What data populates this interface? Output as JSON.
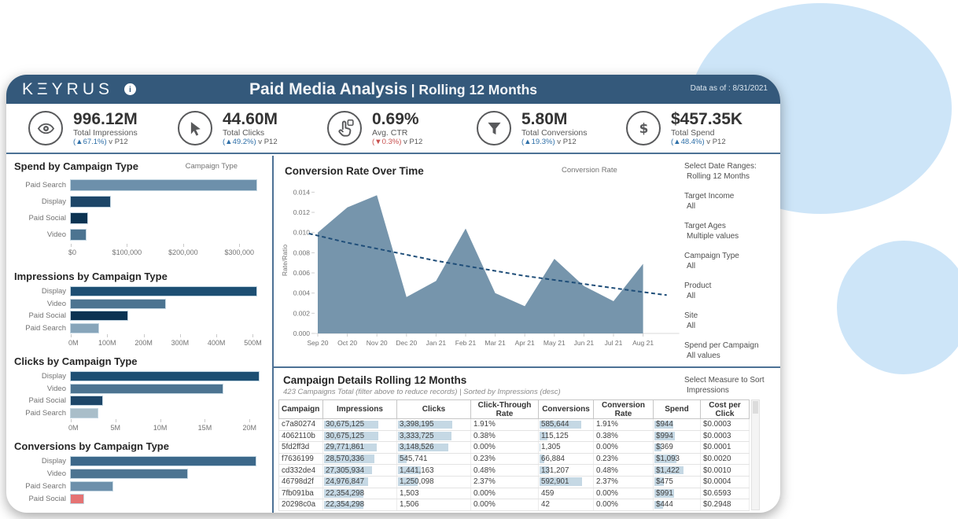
{
  "header": {
    "logo": "KΞYRUS",
    "info_icon": "i",
    "title_main": "Paid Media Analysis",
    "title_sep": "| ",
    "title_sub": "Rolling 12 Months",
    "data_as_of": "Data as of : 8/31/2021"
  },
  "colors": {
    "header_bg": "#34597B",
    "divider": "#4C7195",
    "accent_up": "#2D6FA8",
    "accent_down": "#C8504E",
    "icon": "#58595B",
    "table_bar": "#C5D8E4",
    "area_fill": "#7695AC",
    "trend": "#1F4E79",
    "bg_circle": "#CDE5F8"
  },
  "kpis": [
    {
      "icon": "eye-icon",
      "value": "996.12M",
      "label": "Total Impressions",
      "delta": "(▲67.1%)",
      "suffix": " v P12",
      "dir": "up"
    },
    {
      "icon": "cursor-icon",
      "value": "44.60M",
      "label": "Total Clicks",
      "delta": "(▲49.2%)",
      "suffix": " v P12",
      "dir": "up"
    },
    {
      "icon": "tap-icon",
      "value": "0.69%",
      "label": "Avg. CTR",
      "delta": "(▼0.3%)",
      "suffix": " v P12",
      "dir": "down"
    },
    {
      "icon": "funnel-icon",
      "value": "5.80M",
      "label": "Total Conversions",
      "delta": "(▲19.3%)",
      "suffix": " v P12",
      "dir": "up"
    },
    {
      "icon": "dollar-icon",
      "value": "$457.35K",
      "label": "Total Spend",
      "delta": "(▲48.4%)",
      "suffix": " v P12",
      "dir": "up"
    }
  ],
  "chart_data": [
    {
      "type": "bar",
      "orientation": "horizontal",
      "title": "Spend by Campaign Type",
      "field_label": "Campaign Type",
      "categories": [
        "Paid Search",
        "Display",
        "Paid Social",
        "Video"
      ],
      "values": [
        330000,
        70000,
        30000,
        27000
      ],
      "bar_colors": [
        "#6D90AB",
        "#1D4668",
        "#0B3352",
        "#4C7491"
      ],
      "axis_max": 350000,
      "ticks": [
        {
          "label": "$0",
          "value": 0
        },
        {
          "label": "$100,000",
          "value": 100000
        },
        {
          "label": "$200,000",
          "value": 200000
        },
        {
          "label": "$300,000",
          "value": 300000
        }
      ]
    },
    {
      "type": "bar",
      "orientation": "horizontal",
      "title": "Impressions by Campaign Type",
      "field_label": "",
      "categories": [
        "Display",
        "Video",
        "Paid Social",
        "Paid Search"
      ],
      "values": [
        510000000,
        260000000,
        155000000,
        75000000
      ],
      "bar_colors": [
        "#1D4F73",
        "#4C7491",
        "#0B3352",
        "#87A5BA"
      ],
      "axis_max": 540000000,
      "ticks": [
        {
          "label": "0M",
          "value": 0
        },
        {
          "label": "100M",
          "value": 100000000
        },
        {
          "label": "200M",
          "value": 200000000
        },
        {
          "label": "300M",
          "value": 300000000
        },
        {
          "label": "400M",
          "value": 400000000
        },
        {
          "label": "500M",
          "value": 500000000
        }
      ]
    },
    {
      "type": "bar",
      "orientation": "horizontal",
      "title": "Clicks by Campaign Type",
      "field_label": "",
      "categories": [
        "Display",
        "Video",
        "Paid Social",
        "Paid Search"
      ],
      "values": [
        21000000,
        17000000,
        3500000,
        3000000
      ],
      "bar_colors": [
        "#1D4F73",
        "#4C7491",
        "#1D4668",
        "#A9BEC9"
      ],
      "axis_max": 22000000,
      "ticks": [
        {
          "label": "0M",
          "value": 0
        },
        {
          "label": "5M",
          "value": 5000000
        },
        {
          "label": "10M",
          "value": 10000000
        },
        {
          "label": "15M",
          "value": 15000000
        },
        {
          "label": "20M",
          "value": 20000000
        }
      ]
    },
    {
      "type": "bar",
      "orientation": "horizontal",
      "title": "Conversions by Campaign Type",
      "field_label": "",
      "categories": [
        "Display",
        "Video",
        "Paid Search",
        "Paid Social"
      ],
      "values": [
        3100000,
        1950000,
        700000,
        210000
      ],
      "bar_colors": [
        "#3C688A",
        "#4C7491",
        "#6D90AB",
        "#E57373"
      ],
      "axis_max": 3300000,
      "ticks": []
    },
    {
      "type": "area",
      "title": "Conversion Rate Over Time",
      "field_label": "Conversion Rate",
      "ylabel": "Rate/Ratio",
      "x": [
        "Sep 20",
        "Oct 20",
        "Nov 20",
        "Dec 20",
        "Jan 21",
        "Feb 21",
        "Mar 21",
        "Apr 21",
        "May 21",
        "Jun 21",
        "Jul 21",
        "Aug 21"
      ],
      "values": [
        0.01,
        0.0125,
        0.0137,
        0.0036,
        0.0052,
        0.0104,
        0.004,
        0.0027,
        0.0074,
        0.0047,
        0.0032,
        0.0069
      ],
      "trend": [
        [
          -0.3,
          0.0099
        ],
        [
          0,
          0.0097
        ],
        [
          1,
          0.009
        ],
        [
          2,
          0.0084
        ],
        [
          3,
          0.0078
        ],
        [
          4,
          0.0072
        ],
        [
          5,
          0.0067
        ],
        [
          6,
          0.0062
        ],
        [
          7,
          0.0057
        ],
        [
          8,
          0.0053
        ],
        [
          9,
          0.0049
        ],
        [
          10,
          0.0045
        ],
        [
          11,
          0.0041
        ],
        [
          11.8,
          0.0038
        ]
      ],
      "ylim": [
        0,
        0.0145
      ],
      "yticks": [
        "0.000",
        "0.002",
        "0.004",
        "0.006",
        "0.008",
        "0.010",
        "0.012",
        "0.014"
      ]
    }
  ],
  "filters": [
    {
      "label": "Select Date Ranges:",
      "value": "Rolling 12 Months"
    },
    {
      "label": "Target Income",
      "value": "All"
    },
    {
      "label": "Target Ages",
      "value": "Multiple values"
    },
    {
      "label": "Campaign Type",
      "value": "All"
    },
    {
      "label": "Product",
      "value": "All"
    },
    {
      "label": "Site",
      "value": "All"
    },
    {
      "label": "Spend per Campaign",
      "value": "All values"
    }
  ],
  "sort_control": {
    "label": "Select Measure to Sort",
    "value": "Impressions"
  },
  "table": {
    "title": "Campaign Details Rolling 12 Months",
    "subtitle": "423 Campaigns Total (filter above to reduce records) | Sorted by Impressions (desc)",
    "columns": [
      "Campaign",
      "Impressions",
      "Clicks",
      "Click-Through Rate",
      "Conversions",
      "Conversion Rate",
      "Spend",
      "Cost per Click"
    ],
    "rows": [
      [
        "c7a80274",
        "30,675,125",
        "3,398,195",
        "1.91%",
        "585,644",
        "1.91%",
        "$944",
        "$0.0003"
      ],
      [
        "4062110b",
        "30,675,125",
        "3,333,725",
        "0.38%",
        "115,125",
        "0.38%",
        "$994",
        "$0.0003"
      ],
      [
        "5fd2ff3d",
        "29,771,861",
        "3,148,526",
        "0.00%",
        "1,305",
        "0.00%",
        "$369",
        "$0.0001"
      ],
      [
        "f7636199",
        "28,570,336",
        "545,741",
        "0.23%",
        "66,884",
        "0.23%",
        "$1,093",
        "$0.0020"
      ],
      [
        "cd332de4",
        "27,305,934",
        "1,441,163",
        "0.48%",
        "131,207",
        "0.48%",
        "$1,422",
        "$0.0010"
      ],
      [
        "46798d2f",
        "24,976,847",
        "1,250,098",
        "2.37%",
        "592,901",
        "2.37%",
        "$475",
        "$0.0004"
      ],
      [
        "7fb091ba",
        "22,354,298",
        "1,503",
        "0.00%",
        "459",
        "0.00%",
        "$991",
        "$0.6593"
      ],
      [
        "20298c0a",
        "22,354,298",
        "1,506",
        "0.00%",
        "42",
        "0.00%",
        "$444",
        "$0.2948"
      ]
    ],
    "bar_columns": [
      {
        "col": 1,
        "max": 30675125,
        "scale": 0.74,
        "values": [
          30675125,
          30675125,
          29771861,
          28570336,
          27305934,
          24976847,
          22354298,
          22354298
        ]
      },
      {
        "col": 2,
        "max": 3398195,
        "scale": 0.74,
        "values": [
          3398195,
          3333725,
          3148526,
          545741,
          1441163,
          1250098,
          1503,
          1506
        ]
      },
      {
        "col": 4,
        "max": 592901,
        "scale": 0.78,
        "values": [
          585644,
          115125,
          1305,
          66884,
          131207,
          592901,
          459,
          42
        ]
      },
      {
        "col": 6,
        "max": 1422,
        "scale": 0.62,
        "values": [
          944,
          994,
          369,
          1093,
          1422,
          475,
          991,
          444
        ]
      }
    ]
  }
}
